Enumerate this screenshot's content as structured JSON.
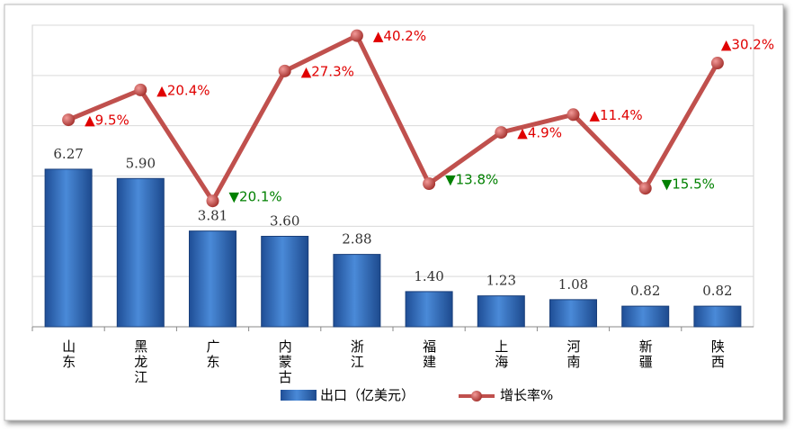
{
  "chart_data": {
    "type": "bar-line",
    "categories": [
      "山东",
      "黑龙江",
      "广东",
      "内蒙古",
      "浙江",
      "福建",
      "上海",
      "河南",
      "新疆",
      "陕西"
    ],
    "series": [
      {
        "name": "出口（亿美元）",
        "color": "#2e6bc0",
        "type": "bar",
        "values": [
          6.27,
          5.9,
          3.81,
          3.6,
          2.88,
          1.4,
          1.23,
          1.08,
          0.82,
          0.82
        ],
        "value_labels": [
          "6.27",
          "5.90",
          "3.81",
          "3.60",
          "2.88",
          "1.40",
          "1.23",
          "1.08",
          "0.82",
          "0.82"
        ]
      },
      {
        "name": "增长率%",
        "color": "#c0504d",
        "type": "line",
        "axis": "y2",
        "values": [
          9.5,
          20.4,
          -20.1,
          27.3,
          40.2,
          -13.8,
          4.9,
          11.4,
          -15.5,
          30.2
        ],
        "value_labels": [
          "▲9.5%",
          "▲20.4%",
          "▼20.1%",
          "▲27.3%",
          "▲40.2%",
          "▼13.8%",
          "▲4.9%",
          "▲11.4%",
          "▼15.5%",
          "▲30.2%"
        ]
      }
    ],
    "ylim": [
      0,
      12
    ],
    "yticks": [
      0,
      2,
      4,
      6,
      8,
      10,
      12
    ],
    "y2lim": [
      -66,
      44
    ],
    "grid": true,
    "legend": "bottom"
  }
}
